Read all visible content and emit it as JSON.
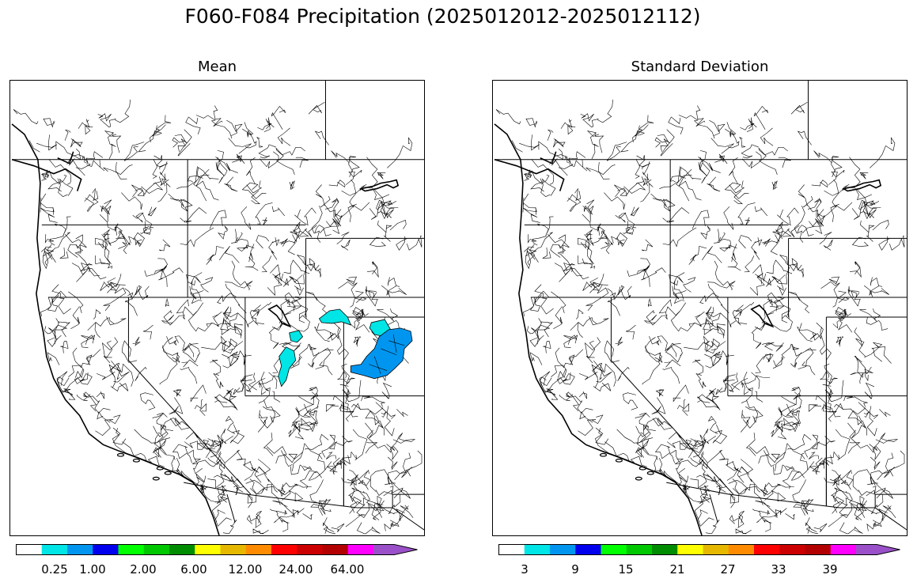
{
  "figure": {
    "title": "F060-F084 Precipitation (2025012012-2025012112)"
  },
  "panels": [
    {
      "title": "Mean",
      "colorbar": {
        "colors": [
          "#ffffff",
          "#00e5e5",
          "#0096f0",
          "#0000ee",
          "#00ff00",
          "#00c800",
          "#008c00",
          "#ffff00",
          "#e6b800",
          "#ff8c00",
          "#ff0000",
          "#cc0000",
          "#b30000",
          "#ff00ff",
          "#9a50c8"
        ],
        "tick_labels": [
          "0.25",
          "1.00",
          "2.00",
          "6.00",
          "12.00",
          "24.00",
          "64.00"
        ],
        "extend": "max"
      },
      "highlighted_basins": [
        {
          "color": "#00e5e5"
        },
        {
          "color": "#0096f0"
        }
      ]
    },
    {
      "title": "Standard Deviation",
      "colorbar": {
        "colors": [
          "#ffffff",
          "#00e5e5",
          "#0096f0",
          "#0000ee",
          "#00ff00",
          "#00c800",
          "#008c00",
          "#ffff00",
          "#e6b800",
          "#ff8c00",
          "#ff0000",
          "#cc0000",
          "#b30000",
          "#ff00ff",
          "#9a50c8"
        ],
        "tick_labels": [
          "3",
          "9",
          "15",
          "21",
          "27",
          "33",
          "39"
        ],
        "extend": "max"
      },
      "highlighted_basins": []
    }
  ]
}
